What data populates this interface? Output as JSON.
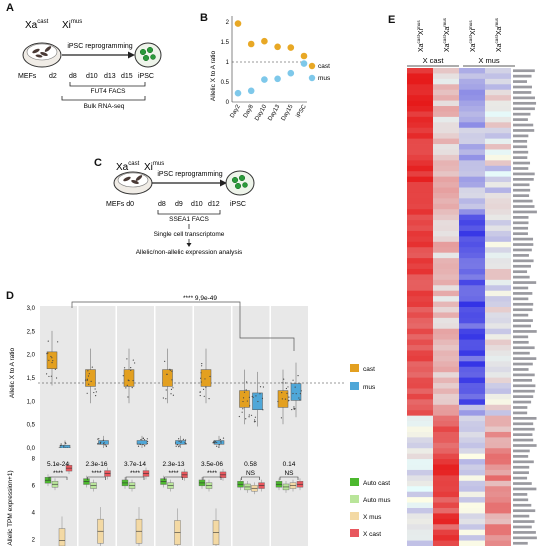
{
  "panels": {
    "A": {
      "letter": "A",
      "xa_main": "Xa",
      "xa_sup": "cast",
      "xi_main": "Xi",
      "xi_sup": "mus",
      "arrow_label": "iPSC reprogramming",
      "source_label": "MEFs",
      "target_label": "iPSC",
      "timepoints": [
        "d2",
        "d8",
        "d10",
        "d13",
        "d15"
      ],
      "facs_label": "FUT4 FACS",
      "assay_label": "Bulk RNA-seq"
    },
    "B": {
      "letter": "B",
      "ylabel": "Allelic X to A ratio",
      "yticks": [
        "0",
        "0.5",
        "1",
        "1.5",
        "2"
      ],
      "legend": [
        {
          "label": "cast",
          "color": "#e8a825"
        },
        {
          "label": "mus",
          "color": "#7ec8ea"
        }
      ]
    },
    "C": {
      "letter": "C",
      "xa_main": "Xa",
      "xa_sup": "cast",
      "xi_main": "Xi",
      "xi_sup": "mus",
      "arrow_label": "iPSC reprogramming",
      "source_label": "MEFs",
      "target_label": "iPSC",
      "timepoints": [
        "d0",
        "d8",
        "d9",
        "d10",
        "d12"
      ],
      "facs_label": "SSEA1 FACS",
      "step1": "Single cell transcriptome",
      "step2": "Allelic/non-allelic expression analysis"
    },
    "D": {
      "letter": "D",
      "top": {
        "ylabel": "Allelic X to A ratio",
        "yticks": [
          "0,0",
          "0,5",
          "1,0",
          "1,5",
          "2,0",
          "2,5",
          "3,0"
        ],
        "pvalue": "**** 9,9e-49",
        "legend": [
          {
            "label": "cast",
            "color": "#e3a020"
          },
          {
            "label": "mus",
            "color": "#4fa7d8"
          }
        ]
      },
      "bottom": {
        "ylabel": "Allelic TPM expression+1)",
        "yticks": [
          "2",
          "4",
          "6",
          "8"
        ],
        "pvalues": [
          "5.1e-24",
          "2.3e-16",
          "3.7e-14",
          "2.3e-13",
          "3.5e-06",
          "0.58",
          "0.14"
        ],
        "stars": [
          "****",
          "****",
          "****",
          "****",
          "****",
          "NS",
          "NS"
        ],
        "legend": [
          {
            "label": "Auto cast",
            "color": "#4cb82e"
          },
          {
            "label": "Auto mus",
            "color": "#b9e59a"
          },
          {
            "label": "X mus",
            "color": "#f3d9a4"
          },
          {
            "label": "X cast",
            "color": "#e8575e"
          }
        ]
      }
    },
    "E": {
      "letter": "E",
      "columns": [
        {
          "main": "Xa",
          "sup1": "cast",
          "main2": "Xi",
          "sup2": "mus"
        },
        {
          "main": "Xa",
          "sup1": "cast",
          "main2": "Xa",
          "sup2": "mus"
        },
        {
          "main": "Xa",
          "sup1": "cast",
          "main2": "Xi",
          "sup2": "mus"
        },
        {
          "main": "Xa",
          "sup1": "cast",
          "main2": "Xa",
          "sup2": "mus"
        }
      ],
      "group_left": "X cast",
      "group_right": "X mus"
    }
  },
  "chart_data": [
    {
      "type": "scatter",
      "panel": "B",
      "title": "",
      "xlabel": "",
      "ylabel": "Allelic X to A ratio",
      "categories": [
        "Day2",
        "Day8",
        "Day10",
        "Day13",
        "Day15",
        "iPSC"
      ],
      "ylim": [
        0,
        2
      ],
      "series": [
        {
          "name": "cast",
          "color": "#e8a825",
          "values": [
            1.96,
            1.45,
            1.52,
            1.38,
            1.36,
            1.15
          ]
        },
        {
          "name": "mus",
          "color": "#7ec8ea",
          "values": [
            0.22,
            0.28,
            0.56,
            0.58,
            0.72,
            0.96
          ]
        }
      ],
      "reference_line": 1.0
    },
    {
      "type": "box",
      "panel": "D-top",
      "title": "",
      "ylabel": "Allelic X to A ratio",
      "ylim": [
        0,
        3
      ],
      "groups": 7,
      "series": [
        {
          "name": "cast",
          "color": "#e3a020",
          "medians": [
            1.88,
            1.5,
            1.5,
            1.5,
            1.5,
            1.05,
            1.05
          ]
        },
        {
          "name": "mus",
          "color": "#4fa7d8",
          "medians": [
            0.02,
            0.12,
            0.12,
            0.12,
            0.12,
            1.0,
            1.2
          ]
        }
      ],
      "reference_line": 1.0,
      "annotation": "**** 9,9e-49"
    },
    {
      "type": "box",
      "panel": "D-bottom",
      "title": "",
      "ylabel": "Allelic TPM expression+1)",
      "ylim": [
        1.5,
        8.8
      ],
      "groups": 7,
      "series": [
        {
          "name": "Auto cast",
          "color": "#4cb82e",
          "medians": [
            6.4,
            6.3,
            6.2,
            6.3,
            6.2,
            6.1,
            6.1
          ]
        },
        {
          "name": "Auto mus",
          "color": "#b9e59a",
          "medians": [
            6.1,
            6.0,
            6.0,
            6.0,
            6.0,
            5.9,
            5.9
          ]
        },
        {
          "name": "X mus",
          "color": "#f3d9a4",
          "medians": [
            1.9,
            2.6,
            2.6,
            2.5,
            2.5,
            5.8,
            6.0
          ]
        },
        {
          "name": "X cast",
          "color": "#e8575e",
          "medians": [
            7.3,
            6.9,
            6.9,
            6.8,
            6.8,
            6.0,
            6.1
          ]
        }
      ],
      "pvalues": [
        "5.1e-24",
        "2.3e-16",
        "3.7e-14",
        "2.3e-13",
        "3.5e-06",
        "0.58",
        "0.14"
      ]
    },
    {
      "type": "heatmap",
      "panel": "E",
      "columns": 4,
      "rows": 88,
      "colors": {
        "low": "#1a1ae6",
        "mid": "#ffffff",
        "high": "#e61a1a"
      },
      "groups": [
        "X cast",
        "X mus"
      ]
    }
  ]
}
